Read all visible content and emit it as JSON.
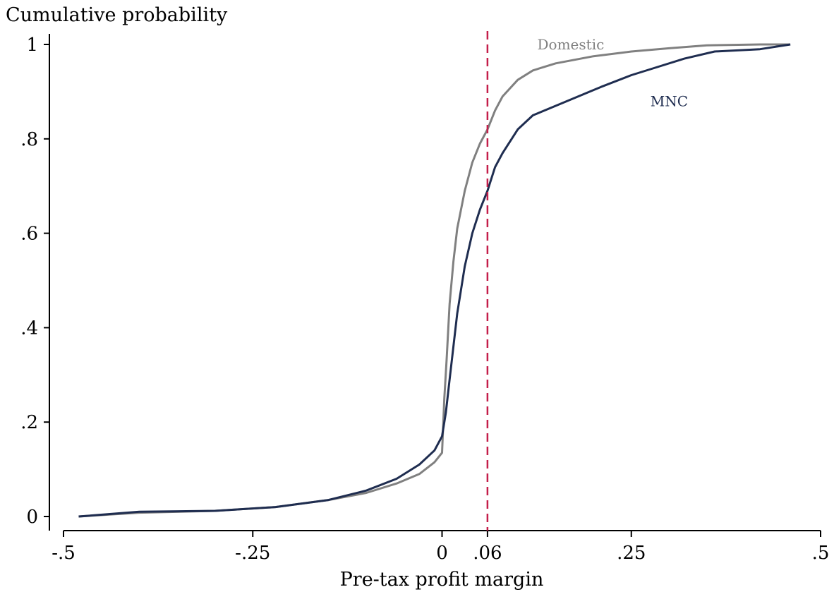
{
  "chart_data": {
    "type": "line",
    "ylabel": "Cumulative probability",
    "xlabel": "Pre-tax profit margin",
    "xlim": [
      -0.5,
      0.5
    ],
    "ylim": [
      0,
      1
    ],
    "x_ticks": [
      {
        "value": -0.5,
        "label": "-.5"
      },
      {
        "value": -0.25,
        "label": "-.25"
      },
      {
        "value": 0,
        "label": "0"
      },
      {
        "value": 0.06,
        "label": ".06"
      },
      {
        "value": 0.25,
        "label": ".25"
      },
      {
        "value": 0.5,
        "label": ".5"
      }
    ],
    "y_ticks": [
      {
        "value": 0,
        "label": "0"
      },
      {
        "value": 0.2,
        "label": ".2"
      },
      {
        "value": 0.4,
        "label": ".4"
      },
      {
        "value": 0.6,
        "label": ".6"
      },
      {
        "value": 0.8,
        "label": ".8"
      },
      {
        "value": 1,
        "label": "1"
      }
    ],
    "reference_line": {
      "x": 0.06,
      "style": "dashed",
      "color": "#c41e4a"
    },
    "grid": false,
    "series": [
      {
        "name": "Domestic",
        "color": "#808080",
        "points": [
          [
            -0.48,
            0.0
          ],
          [
            -0.4,
            0.008
          ],
          [
            -0.3,
            0.012
          ],
          [
            -0.22,
            0.02
          ],
          [
            -0.15,
            0.035
          ],
          [
            -0.1,
            0.05
          ],
          [
            -0.06,
            0.07
          ],
          [
            -0.03,
            0.09
          ],
          [
            -0.01,
            0.115
          ],
          [
            0.0,
            0.135
          ],
          [
            0.003,
            0.25
          ],
          [
            0.006,
            0.33
          ],
          [
            0.01,
            0.45
          ],
          [
            0.015,
            0.54
          ],
          [
            0.02,
            0.61
          ],
          [
            0.03,
            0.69
          ],
          [
            0.04,
            0.75
          ],
          [
            0.05,
            0.79
          ],
          [
            0.06,
            0.82
          ],
          [
            0.07,
            0.86
          ],
          [
            0.08,
            0.89
          ],
          [
            0.1,
            0.925
          ],
          [
            0.12,
            0.945
          ],
          [
            0.15,
            0.96
          ],
          [
            0.2,
            0.975
          ],
          [
            0.25,
            0.985
          ],
          [
            0.3,
            0.992
          ],
          [
            0.35,
            0.998
          ],
          [
            0.42,
            1.0
          ],
          [
            0.46,
            1.0
          ]
        ]
      },
      {
        "name": "MNC",
        "color": "#1f2d50",
        "points": [
          [
            -0.48,
            0.0
          ],
          [
            -0.4,
            0.01
          ],
          [
            -0.3,
            0.012
          ],
          [
            -0.22,
            0.02
          ],
          [
            -0.15,
            0.035
          ],
          [
            -0.1,
            0.055
          ],
          [
            -0.06,
            0.08
          ],
          [
            -0.03,
            0.11
          ],
          [
            -0.01,
            0.14
          ],
          [
            0.0,
            0.17
          ],
          [
            0.005,
            0.22
          ],
          [
            0.01,
            0.29
          ],
          [
            0.015,
            0.36
          ],
          [
            0.02,
            0.43
          ],
          [
            0.03,
            0.53
          ],
          [
            0.04,
            0.6
          ],
          [
            0.05,
            0.65
          ],
          [
            0.06,
            0.69
          ],
          [
            0.07,
            0.74
          ],
          [
            0.08,
            0.77
          ],
          [
            0.1,
            0.82
          ],
          [
            0.12,
            0.85
          ],
          [
            0.15,
            0.87
          ],
          [
            0.18,
            0.89
          ],
          [
            0.21,
            0.91
          ],
          [
            0.25,
            0.935
          ],
          [
            0.28,
            0.95
          ],
          [
            0.32,
            0.97
          ],
          [
            0.36,
            0.985
          ],
          [
            0.42,
            0.99
          ],
          [
            0.46,
            1.0
          ]
        ]
      }
    ]
  }
}
